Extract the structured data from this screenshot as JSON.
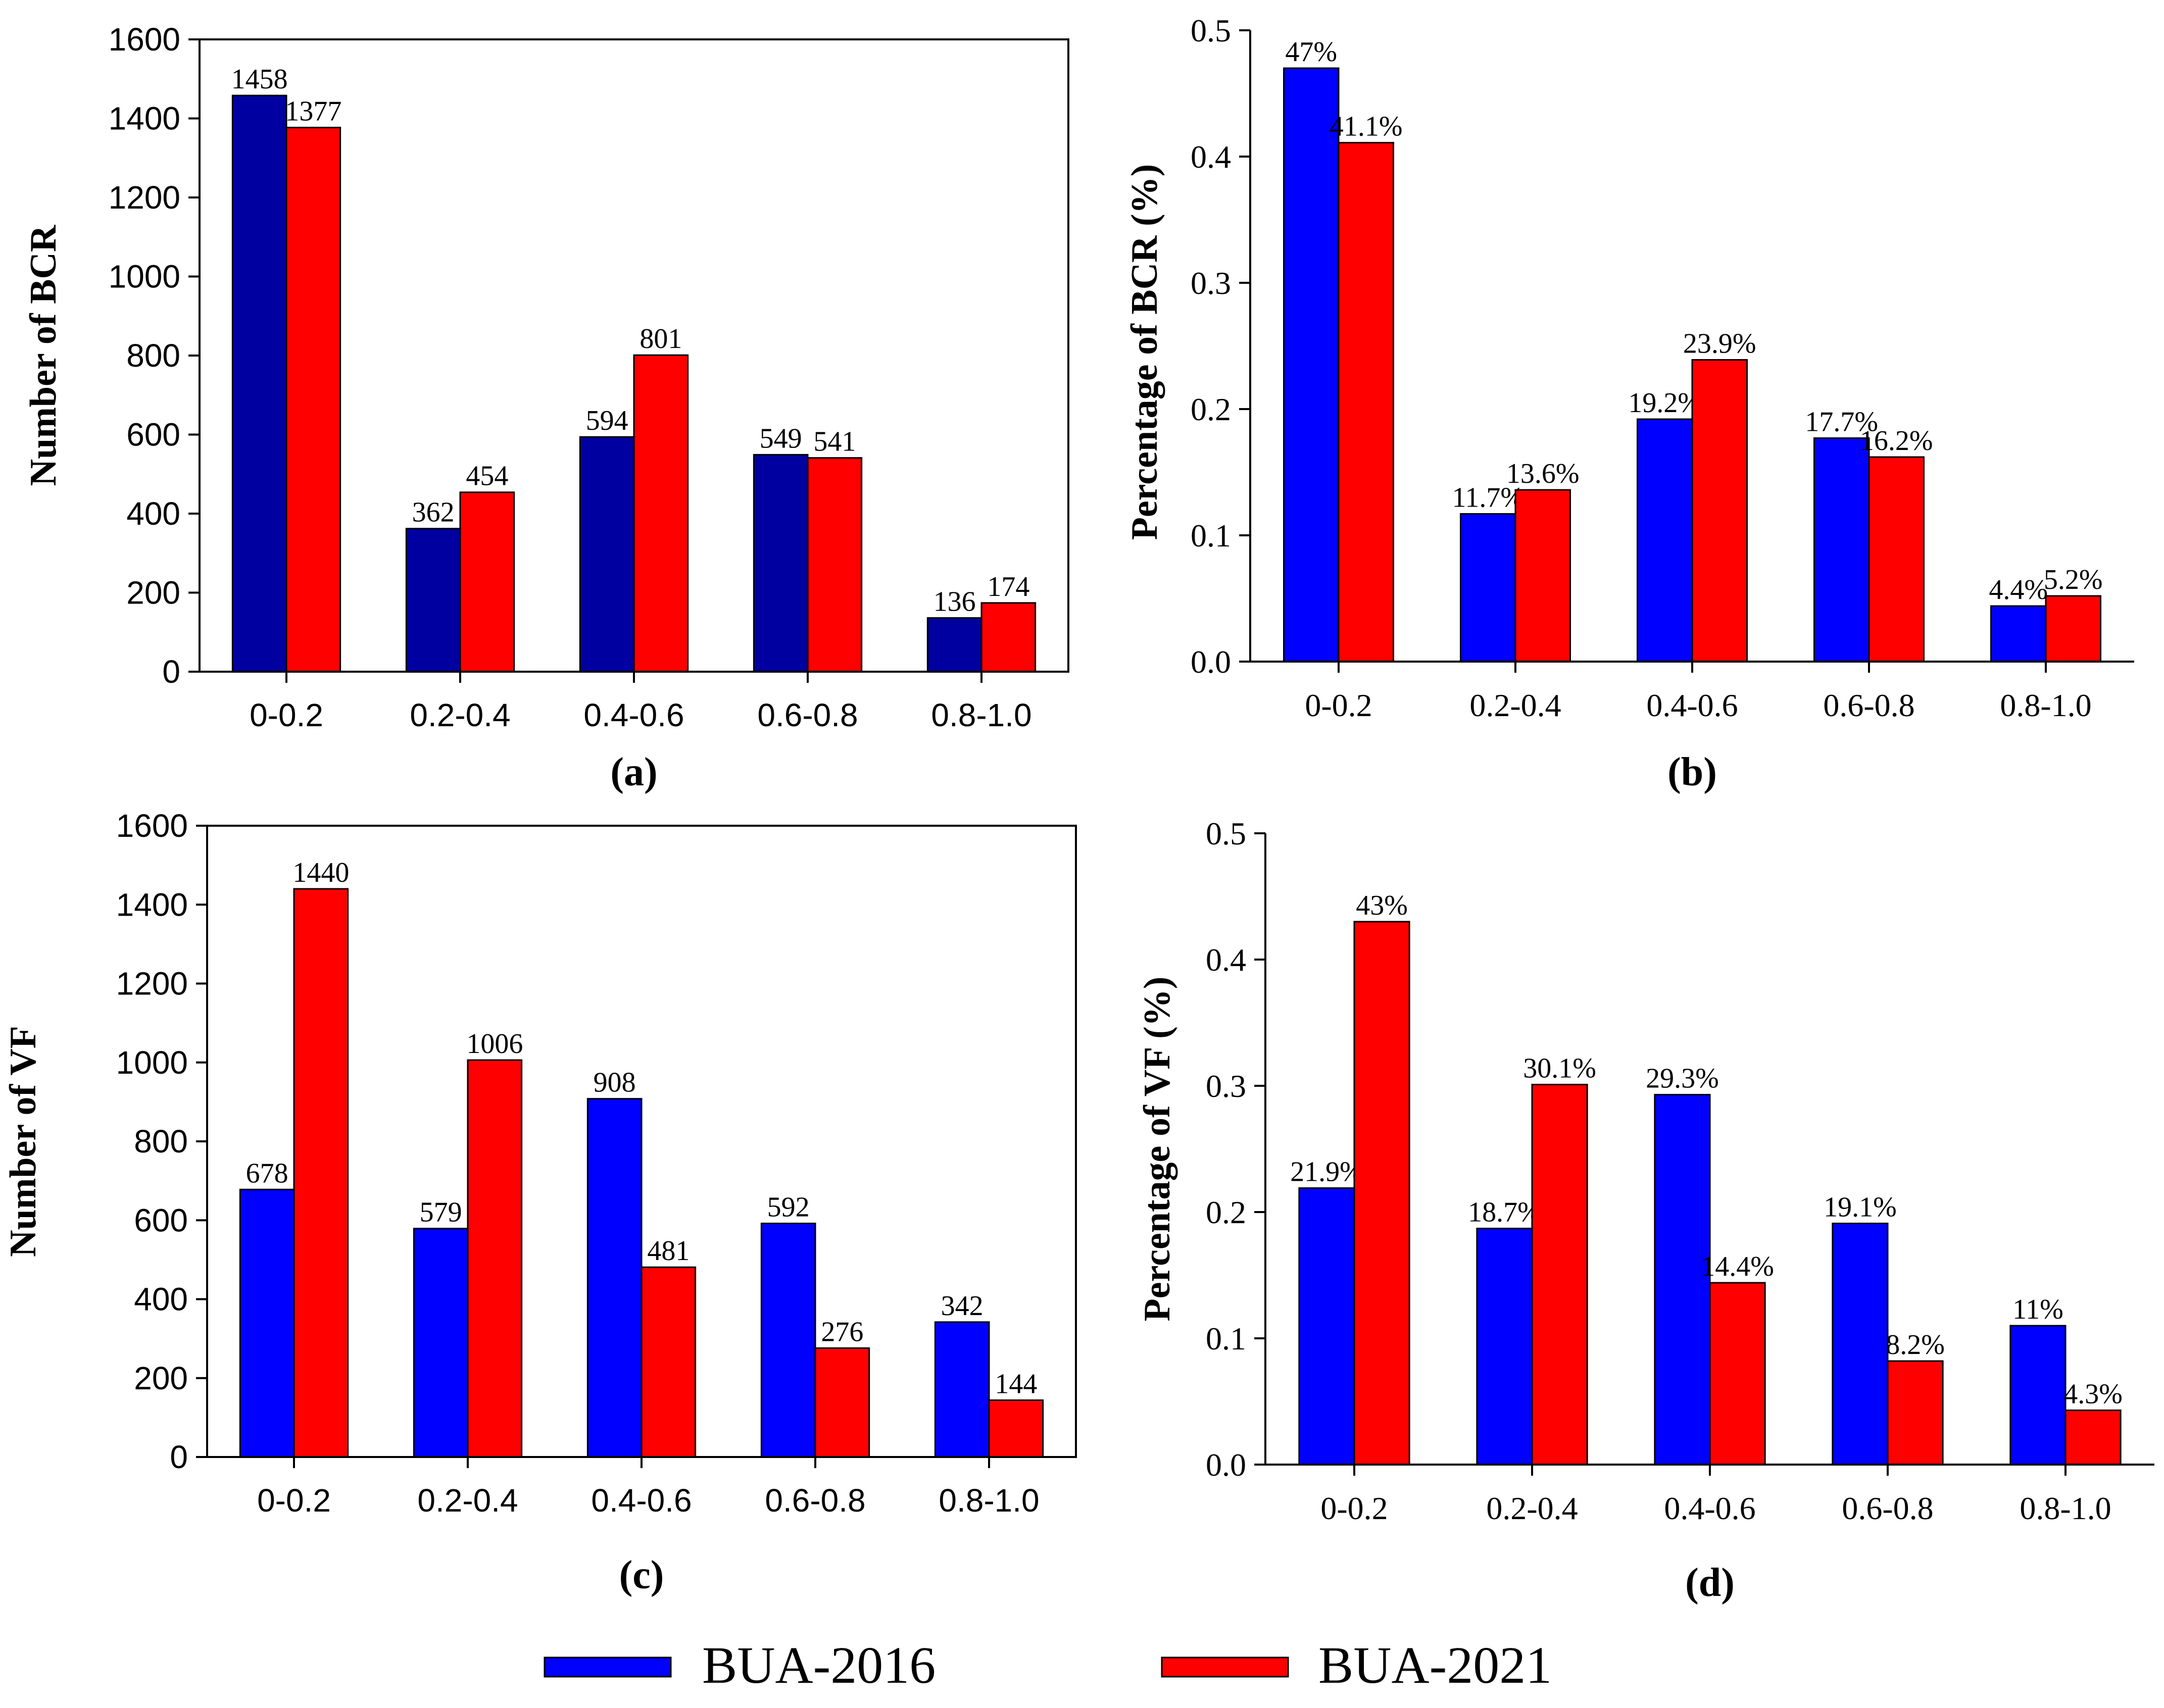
{
  "legend": [
    {
      "label": "BUA-2016",
      "color": "#0000ff"
    },
    {
      "label": "BUA-2021",
      "color": "#ff0000"
    }
  ],
  "chart_data": [
    {
      "type": "bar",
      "panel_label": "(a)",
      "categories": [
        "0-0.2",
        "0.2-0.4",
        "0.4-0.6",
        "0.6-0.8",
        "0.8-1.0"
      ],
      "ylabel": "Number of BCR",
      "ylim": [
        0,
        1600
      ],
      "yticks": [
        "0",
        "200",
        "400",
        "600",
        "800",
        "1000",
        "1200",
        "1400",
        "1600"
      ],
      "frame": "box",
      "series": [
        {
          "name": "BUA-2016",
          "color": "#0000a0",
          "values": [
            1458,
            362,
            594,
            549,
            136
          ],
          "labels": [
            "1458",
            "362",
            "594",
            "549",
            "136"
          ]
        },
        {
          "name": "BUA-2021",
          "color": "#ff0000",
          "values": [
            1377,
            454,
            801,
            541,
            174
          ],
          "labels": [
            "1377",
            "454",
            "801",
            "541",
            "174"
          ]
        }
      ]
    },
    {
      "type": "bar",
      "panel_label": "(b)",
      "categories": [
        "0-0.2",
        "0.2-0.4",
        "0.4-0.6",
        "0.6-0.8",
        "0.8-1.0"
      ],
      "ylabel": "Percentage of BCR (%)",
      "ylim": [
        0,
        0.5
      ],
      "yticks": [
        "0.0",
        "0.1",
        "0.2",
        "0.3",
        "0.4",
        "0.5"
      ],
      "frame": "open",
      "series": [
        {
          "name": "BUA-2016",
          "color": "#0000ff",
          "values": [
            0.47,
            0.117,
            0.192,
            0.177,
            0.044
          ],
          "labels": [
            "47%",
            "11.7%",
            "19.2%",
            "17.7%",
            "4.4%"
          ]
        },
        {
          "name": "BUA-2021",
          "color": "#ff0000",
          "values": [
            0.411,
            0.136,
            0.239,
            0.162,
            0.052
          ],
          "labels": [
            "41.1%",
            "13.6%",
            "23.9%",
            "16.2%",
            "5.2%"
          ]
        }
      ]
    },
    {
      "type": "bar",
      "panel_label": "(c)",
      "categories": [
        "0-0.2",
        "0.2-0.4",
        "0.4-0.6",
        "0.6-0.8",
        "0.8-1.0"
      ],
      "ylabel": "Number of VF",
      "ylim": [
        0,
        1600
      ],
      "yticks": [
        "0",
        "200",
        "400",
        "600",
        "800",
        "1000",
        "1200",
        "1400",
        "1600"
      ],
      "frame": "box",
      "series": [
        {
          "name": "BUA-2016",
          "color": "#0000ff",
          "values": [
            678,
            579,
            908,
            592,
            342
          ],
          "labels": [
            "678",
            "579",
            "908",
            "592",
            "342"
          ]
        },
        {
          "name": "BUA-2021",
          "color": "#ff0000",
          "values": [
            1440,
            1006,
            481,
            276,
            144
          ],
          "labels": [
            "1440",
            "1006",
            "481",
            "276",
            "144"
          ]
        }
      ]
    },
    {
      "type": "bar",
      "panel_label": "(d)",
      "categories": [
        "0-0.2",
        "0.2-0.4",
        "0.4-0.6",
        "0.6-0.8",
        "0.8-1.0"
      ],
      "ylabel": "Percentage of VF (%)",
      "ylim": [
        0,
        0.5
      ],
      "yticks": [
        "0.0",
        "0.1",
        "0.2",
        "0.3",
        "0.4",
        "0.5"
      ],
      "frame": "open",
      "series": [
        {
          "name": "BUA-2016",
          "color": "#0000ff",
          "values": [
            0.219,
            0.187,
            0.293,
            0.191,
            0.11
          ],
          "labels": [
            "21.9%",
            "18.7%",
            "29.3%",
            "19.1%",
            "11%"
          ]
        },
        {
          "name": "BUA-2021",
          "color": "#ff0000",
          "values": [
            0.43,
            0.301,
            0.144,
            0.082,
            0.043
          ],
          "labels": [
            "43%",
            "30.1%",
            "14.4%",
            "8.2%",
            "4.3%"
          ]
        }
      ]
    }
  ]
}
